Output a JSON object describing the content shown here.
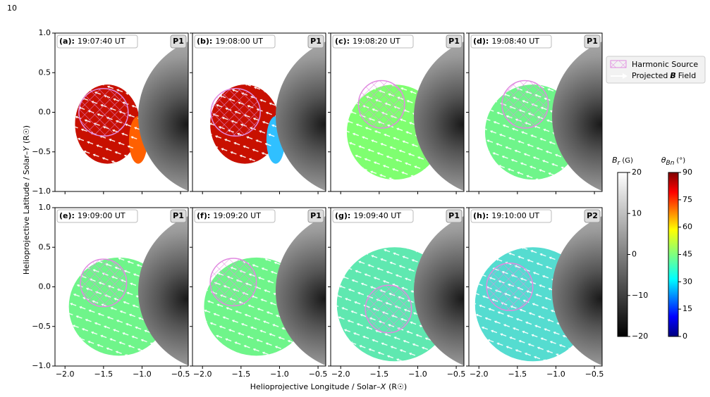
{
  "page_number": "10",
  "figure": {
    "xlabel": {
      "text": "Helioprojective Longitude / Solar–",
      "var": "X",
      "unit": "(R☉)"
    },
    "ylabel": {
      "text": "Helioprojective Latitude / Solar–",
      "var": "Y",
      "unit": "(R☉)"
    },
    "xlim": [
      -2.13,
      -0.4
    ],
    "xticks": [
      {
        "value": -2.0,
        "label": "−2.0"
      },
      {
        "value": -1.5,
        "label": "−1.5"
      },
      {
        "value": -1.0,
        "label": "−1.0"
      },
      {
        "value": -0.5,
        "label": "−0.5"
      }
    ],
    "ylim": [
      -1,
      1
    ],
    "yticks": [
      {
        "value": 1,
        "label": "1.0"
      },
      0.5,
      {
        "value": 0,
        "label": "0.0"
      },
      {
        "value": -0.5,
        "label": "−0.5"
      },
      {
        "value": -1,
        "label": "−1.0"
      }
    ],
    "panels": [
      {
        "label": "(a):",
        "time": "19:07:40 UT",
        "tag": "P1"
      },
      {
        "label": "(b):",
        "time": "19:08:00 UT",
        "tag": "P1"
      },
      {
        "label": "(c):",
        "time": "19:08:20 UT",
        "tag": "P1"
      },
      {
        "label": "(d):",
        "time": "19:08:40 UT",
        "tag": "P1"
      },
      {
        "label": "(e):",
        "time": "19:09:00 UT",
        "tag": "P1"
      },
      {
        "label": "(f):",
        "time": "19:09:20 UT",
        "tag": "P1"
      },
      {
        "label": "(g):",
        "time": "19:09:40 UT",
        "tag": "P1"
      },
      {
        "label": "(h):",
        "time": "19:10:00 UT",
        "tag": "P2"
      }
    ],
    "legend": {
      "source": "Harmonic Source",
      "field": [
        "Projected",
        "B",
        "Field"
      ]
    },
    "colorbars": [
      {
        "symbol": "B",
        "subscript": "r",
        "unit": "(G)",
        "lim": [
          -20,
          20
        ],
        "ticks": [
          20,
          10,
          0,
          {
            "value": -10,
            "label": "−10"
          },
          {
            "value": -20,
            "label": "−20"
          }
        ]
      },
      {
        "symbol": "θ",
        "subscript": "Bn",
        "unit": "(°)",
        "lim": [
          0,
          90
        ],
        "ticks": [
          0,
          15,
          30,
          45,
          60,
          75,
          90
        ]
      }
    ]
  }
}
